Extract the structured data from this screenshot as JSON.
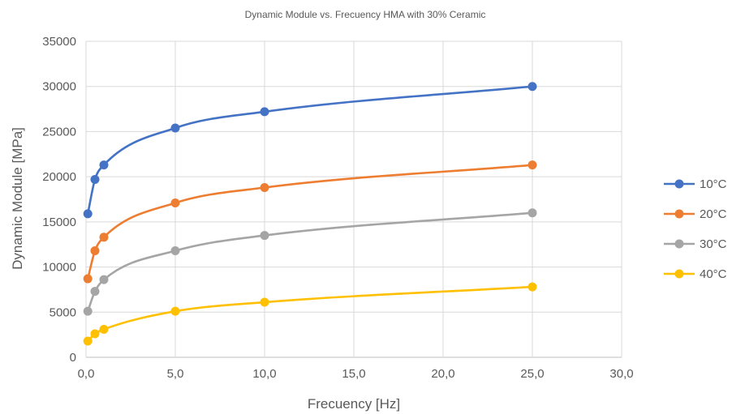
{
  "chart_data": {
    "type": "line",
    "title": "Dynamic Module vs. Frecuency HMA with 30% Ceramic",
    "xlabel": "Frecuency [Hz]",
    "ylabel": "Dynamic Module [MPa]",
    "xlim": [
      0,
      30
    ],
    "ylim": [
      0,
      35000
    ],
    "x_ticks": [
      "0,0",
      "5,0",
      "10,0",
      "15,0",
      "20,0",
      "25,0",
      "30,0"
    ],
    "y_ticks": [
      "0",
      "5000",
      "10000",
      "15000",
      "20000",
      "25000",
      "30000",
      "35000"
    ],
    "grid": true,
    "smooth": true,
    "legend_position": "right",
    "x": [
      0.1,
      0.5,
      1,
      5,
      10,
      25
    ],
    "series": [
      {
        "name": "10°C",
        "color": "#4472C4",
        "values": [
          15900,
          19700,
          21300,
          25400,
          27200,
          30000
        ]
      },
      {
        "name": "20°C",
        "color": "#ED7D31",
        "values": [
          8700,
          11800,
          13300,
          17100,
          18800,
          21300
        ]
      },
      {
        "name": "30°C",
        "color": "#A5A5A5",
        "values": [
          5100,
          7300,
          8600,
          11800,
          13500,
          16000
        ]
      },
      {
        "name": "40°C",
        "color": "#FFC000",
        "values": [
          1800,
          2600,
          3100,
          5100,
          6100,
          7800
        ]
      }
    ]
  }
}
